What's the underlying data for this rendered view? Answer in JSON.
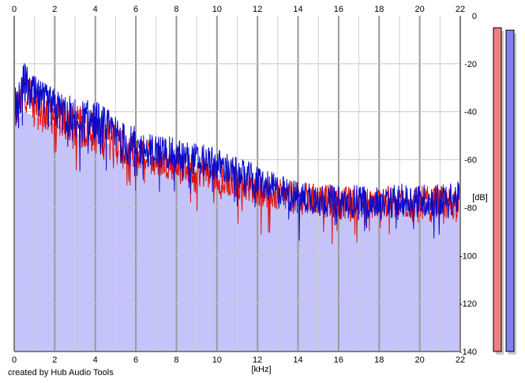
{
  "credit_text": "created by Hub Audio Tools",
  "colors": {
    "left_channel": "#e01010",
    "right_channel": "#0a0ac8",
    "fill_area": "#c4c4fa",
    "grid_major": "#9a9a9a",
    "grid_minor": "#cfcfcf",
    "meter_left": "#f08080",
    "meter_right": "#8080f0",
    "meter_shadow": "#c8c8c8"
  },
  "chart_data": {
    "type": "line",
    "title": "",
    "xlabel": "[kHz]",
    "ylabel": "[dB]",
    "xlim": [
      0,
      22
    ],
    "ylim": [
      -140,
      0
    ],
    "x_ticks": [
      0,
      2,
      4,
      6,
      8,
      10,
      12,
      14,
      16,
      18,
      20,
      22
    ],
    "x_tick_labels": [
      "0",
      "2",
      "4",
      "6",
      "8",
      "10",
      "12",
      "14",
      "16",
      "18",
      "20",
      "22"
    ],
    "y_ticks": [
      0,
      -20,
      -40,
      -60,
      -80,
      -100,
      -120,
      -140
    ],
    "y_tick_labels": [
      "0",
      "-20",
      "-40",
      "-60",
      "-80",
      "-100",
      "-120",
      "-140"
    ],
    "grid": true,
    "fill_envelope": {
      "x": [
        0,
        0.5,
        1,
        1.5,
        2,
        2.5,
        3,
        3.5,
        4,
        4.5,
        5,
        5.5,
        6,
        6.5,
        7,
        8,
        9,
        10,
        11,
        12,
        13,
        14,
        15,
        16,
        17,
        18,
        19,
        20,
        21,
        22
      ],
      "y": [
        -45,
        -40,
        -42,
        -44,
        -45,
        -47,
        -49,
        -50,
        -51,
        -53,
        -55,
        -58,
        -60,
        -60,
        -61,
        -62,
        -64,
        -66,
        -68,
        -70,
        -72,
        -74,
        -75,
        -76,
        -76,
        -77,
        -77,
        -77,
        -78,
        -78
      ]
    },
    "series": [
      {
        "channel": "left",
        "x": [
          0,
          0.5,
          1,
          1.5,
          2,
          2.5,
          3,
          3.5,
          4,
          4.5,
          5,
          5.5,
          6,
          6.5,
          7,
          8,
          9,
          10,
          11,
          12,
          13,
          14,
          15,
          16,
          17,
          18,
          19,
          20,
          21,
          22
        ],
        "y": [
          -42,
          -30,
          -38,
          -40,
          -41,
          -44,
          -46,
          -47,
          -49,
          -50,
          -53,
          -56,
          -58,
          -58,
          -60,
          -62,
          -64,
          -67,
          -70,
          -72,
          -75,
          -76,
          -77,
          -78,
          -78,
          -78,
          -78,
          -78,
          -78,
          -78
        ]
      },
      {
        "channel": "right",
        "x": [
          0,
          0.5,
          1,
          1.5,
          2,
          2.5,
          3,
          3.5,
          4,
          4.5,
          5,
          5.5,
          6,
          6.5,
          7,
          8,
          9,
          10,
          11,
          12,
          13,
          14,
          15,
          16,
          17,
          18,
          19,
          20,
          21,
          22
        ],
        "y": [
          -40,
          -28,
          -34,
          -37,
          -39,
          -41,
          -43,
          -44,
          -44,
          -47,
          -50,
          -54,
          -55,
          -56,
          -56,
          -58,
          -60,
          -62,
          -66,
          -69,
          -73,
          -76,
          -76,
          -78,
          -77,
          -78,
          -77,
          -77,
          -77,
          -76
        ]
      }
    ],
    "meters": [
      {
        "channel": "left",
        "level_db": -5
      },
      {
        "channel": "right",
        "level_db": -6
      }
    ]
  }
}
